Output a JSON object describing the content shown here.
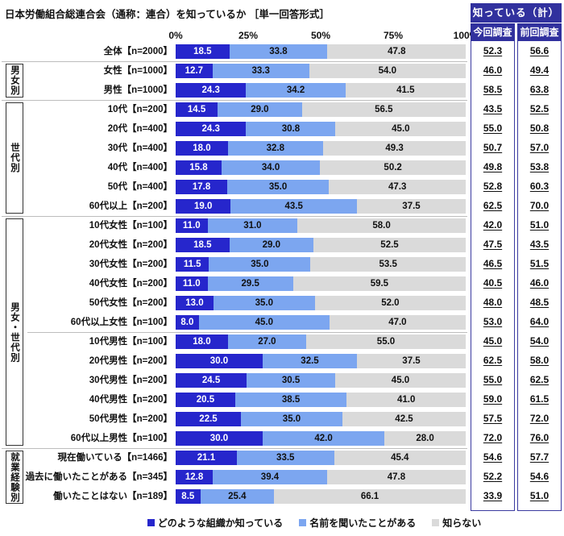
{
  "title": "日本労働組合総連合会（通称：連合）を知っているか ［単一回答形式］",
  "axis": {
    "ticks": [
      "0%",
      "25%",
      "50%",
      "75%",
      "100%"
    ]
  },
  "summary_table": {
    "header": "知っている（計）",
    "columns": [
      "今回調査",
      "前回調査"
    ]
  },
  "legend": [
    {
      "label": "どのような組織か知っている"
    },
    {
      "label": "名前を聞いたことがある"
    },
    {
      "label": "知らない"
    }
  ],
  "colors": {
    "segments": [
      "#2626CC",
      "#7CA6F0",
      "#DADADA"
    ],
    "header_bg": "#31319E",
    "table_border": "#3A3AA0",
    "separator": "#BDBDBD"
  },
  "chart_data": {
    "type": "bar",
    "stacked": true,
    "orientation": "horizontal",
    "xlim": [
      0,
      100
    ],
    "series_names": [
      "どのような組織か知っている",
      "名前を聞いたことがある",
      "知らない"
    ],
    "extra_columns": [
      "今回調査",
      "前回調査"
    ],
    "groups": [
      {
        "label": "男女別",
        "start": 1,
        "count": 2
      },
      {
        "label": "世代別",
        "start": 3,
        "count": 6
      },
      {
        "label": "男女・世代別",
        "start": 9,
        "count": 12
      },
      {
        "label": "就業経験別",
        "start": 21,
        "count": 3
      }
    ],
    "rows": [
      {
        "label": "全体【n=2000】",
        "values": [
          18.5,
          33.8,
          47.8
        ],
        "current": 52.3,
        "previous": 56.6
      },
      {
        "label": "女性【n=1000】",
        "values": [
          12.7,
          33.3,
          54.0
        ],
        "current": 46.0,
        "previous": 49.4
      },
      {
        "label": "男性【n=1000】",
        "values": [
          24.3,
          34.2,
          41.5
        ],
        "current": 58.5,
        "previous": 63.8
      },
      {
        "label": "10代【n=200】",
        "values": [
          14.5,
          29.0,
          56.5
        ],
        "current": 43.5,
        "previous": 52.5
      },
      {
        "label": "20代【n=400】",
        "values": [
          24.3,
          30.8,
          45.0
        ],
        "current": 55.0,
        "previous": 50.8
      },
      {
        "label": "30代【n=400】",
        "values": [
          18.0,
          32.8,
          49.3
        ],
        "current": 50.7,
        "previous": 57.0
      },
      {
        "label": "40代【n=400】",
        "values": [
          15.8,
          34.0,
          50.2
        ],
        "current": 49.8,
        "previous": 53.8
      },
      {
        "label": "50代【n=400】",
        "values": [
          17.8,
          35.0,
          47.3
        ],
        "current": 52.8,
        "previous": 60.3
      },
      {
        "label": "60代以上【n=200】",
        "values": [
          19.0,
          43.5,
          37.5
        ],
        "current": 62.5,
        "previous": 70.0
      },
      {
        "label": "10代女性【n=100】",
        "values": [
          11.0,
          31.0,
          58.0
        ],
        "current": 42.0,
        "previous": 51.0
      },
      {
        "label": "20代女性【n=200】",
        "values": [
          18.5,
          29.0,
          52.5
        ],
        "current": 47.5,
        "previous": 43.5
      },
      {
        "label": "30代女性【n=200】",
        "values": [
          11.5,
          35.0,
          53.5
        ],
        "current": 46.5,
        "previous": 51.5
      },
      {
        "label": "40代女性【n=200】",
        "values": [
          11.0,
          29.5,
          59.5
        ],
        "current": 40.5,
        "previous": 46.0
      },
      {
        "label": "50代女性【n=200】",
        "values": [
          13.0,
          35.0,
          52.0
        ],
        "current": 48.0,
        "previous": 48.5
      },
      {
        "label": "60代以上女性【n=100】",
        "values": [
          8.0,
          45.0,
          47.0
        ],
        "current": 53.0,
        "previous": 64.0
      },
      {
        "label": "10代男性【n=100】",
        "values": [
          18.0,
          27.0,
          55.0
        ],
        "current": 45.0,
        "previous": 54.0
      },
      {
        "label": "20代男性【n=200】",
        "values": [
          30.0,
          32.5,
          37.5
        ],
        "current": 62.5,
        "previous": 58.0
      },
      {
        "label": "30代男性【n=200】",
        "values": [
          24.5,
          30.5,
          45.0
        ],
        "current": 55.0,
        "previous": 62.5
      },
      {
        "label": "40代男性【n=200】",
        "values": [
          20.5,
          38.5,
          41.0
        ],
        "current": 59.0,
        "previous": 61.5
      },
      {
        "label": "50代男性【n=200】",
        "values": [
          22.5,
          35.0,
          42.5
        ],
        "current": 57.5,
        "previous": 72.0
      },
      {
        "label": "60代以上男性【n=100】",
        "values": [
          30.0,
          42.0,
          28.0
        ],
        "current": 72.0,
        "previous": 76.0
      },
      {
        "label": "現在働いている【n=1466】",
        "values": [
          21.1,
          33.5,
          45.4
        ],
        "current": 54.6,
        "previous": 57.7
      },
      {
        "label": "過去に働いたことがある【n=345】",
        "values": [
          12.8,
          39.4,
          47.8
        ],
        "current": 52.2,
        "previous": 54.6
      },
      {
        "label": "働いたことはない【n=189】",
        "values": [
          8.5,
          25.4,
          66.1
        ],
        "current": 33.9,
        "previous": 51.0
      }
    ]
  }
}
